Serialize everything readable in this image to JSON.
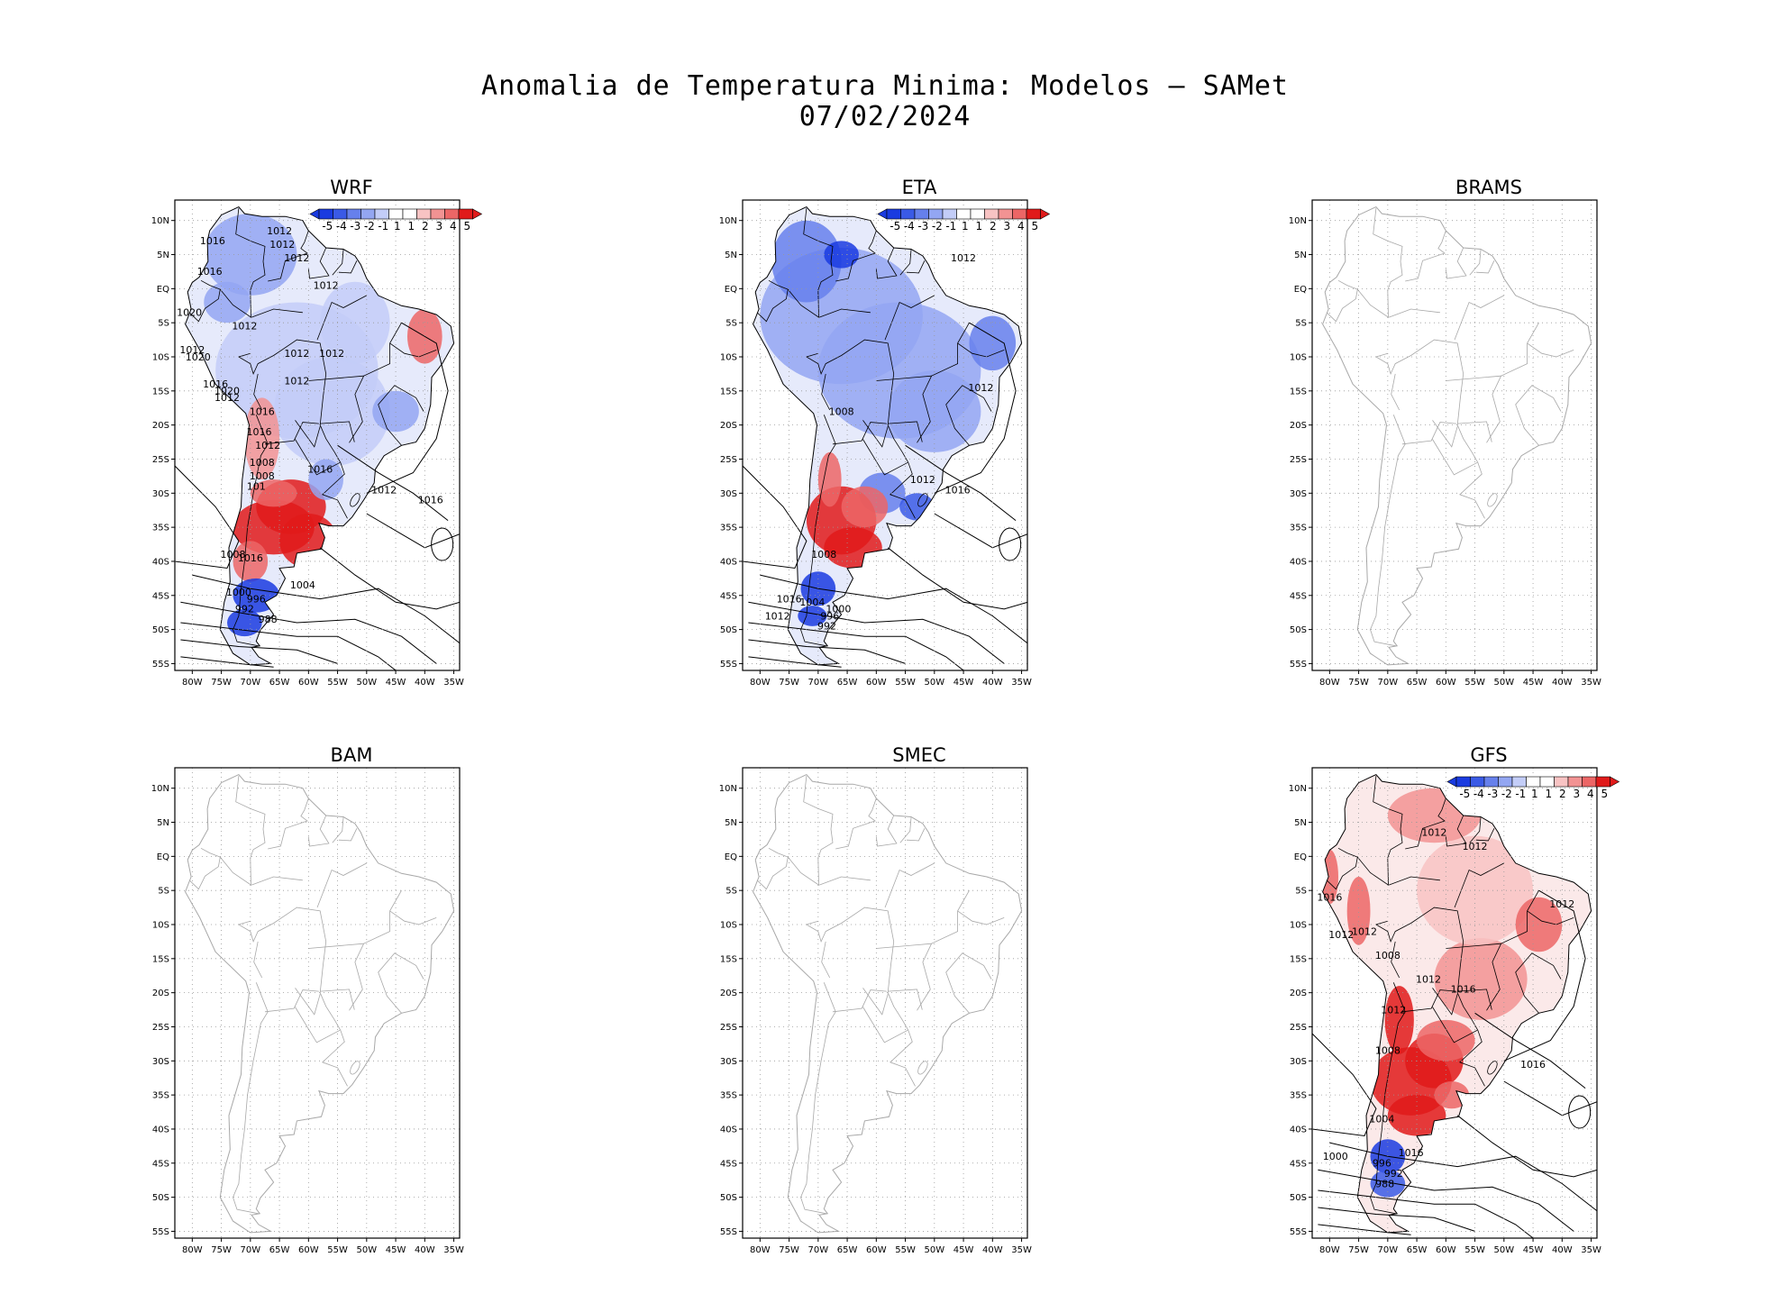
{
  "title": {
    "line1": "Anomalia de Temperatura Minima: Modelos — SAMet",
    "line2": "07/02/2024"
  },
  "axes": {
    "lat_labels": [
      "10N",
      "5N",
      "EQ",
      "5S",
      "10S",
      "15S",
      "20S",
      "25S",
      "30S",
      "35S",
      "40S",
      "45S",
      "50S",
      "55S"
    ],
    "lon_labels": [
      "80W",
      "75W",
      "70W",
      "65W",
      "60W",
      "55W",
      "50W",
      "45W",
      "40W",
      "35W"
    ]
  },
  "colorbar": {
    "labels": [
      "-5",
      "-4",
      "-3",
      "-2",
      "-1",
      "1",
      "1",
      "2",
      "3",
      "4",
      "5"
    ],
    "colors": [
      "#1a3be0",
      "#3a5ae6",
      "#6680ec",
      "#93a6f2",
      "#c3cdf8",
      "#ffffff",
      "#ffffff",
      "#f8c3c3",
      "#f29393",
      "#ec6666",
      "#e01a1a"
    ]
  },
  "panels": [
    {
      "name": "WRF",
      "has_data": true,
      "contour_labels": [
        "1012",
        "1012",
        "1016",
        "1012",
        "1016",
        "1012",
        "1020",
        "1012",
        "1012",
        "1012",
        "1012",
        "1020",
        "1012",
        "1016",
        "1020",
        "1012",
        "1016",
        "1016",
        "1012",
        "1008",
        "1008",
        "1016",
        "101",
        "1016",
        "1012",
        "1008",
        "1016",
        "1004",
        "1000",
        "996",
        "992",
        "988"
      ]
    },
    {
      "name": "ETA",
      "has_data": true,
      "contour_labels": [
        "1012",
        "1012",
        "1008",
        "1012",
        "1016",
        "1008",
        "1016",
        "1004",
        "1000",
        "996",
        "992",
        "1012"
      ]
    },
    {
      "name": "BRAMS",
      "has_data": false,
      "contour_labels": []
    },
    {
      "name": "BAM",
      "has_data": false,
      "contour_labels": []
    },
    {
      "name": "SMEC",
      "has_data": false,
      "contour_labels": []
    },
    {
      "name": "GFS",
      "has_data": true,
      "contour_labels": [
        "1012",
        "1012",
        "1016",
        "1012",
        "1012",
        "1012",
        "1008",
        "1012",
        "1016",
        "1012",
        "1016",
        "1008",
        "1004",
        "1016",
        "1000",
        "996",
        "992",
        "988"
      ]
    }
  ]
}
